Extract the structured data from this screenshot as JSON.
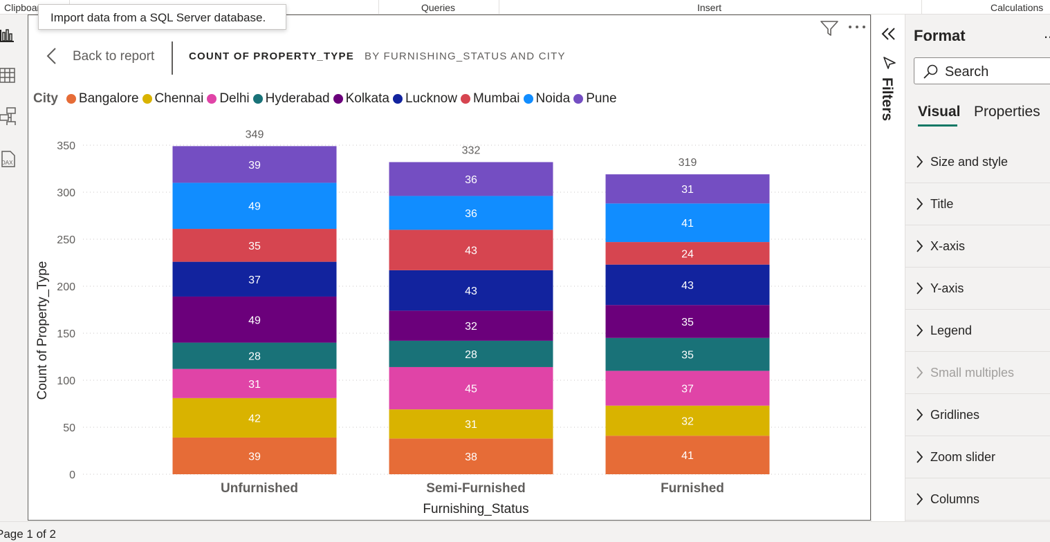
{
  "ribbon": {
    "groups": [
      "Clipboard",
      "Queries",
      "Insert",
      "Calculations"
    ]
  },
  "tooltip": {
    "text": "Import data from a SQL Server database."
  },
  "left_nav": {
    "items": [
      "report-view-icon",
      "table-view-icon",
      "model-view-icon",
      "dax-query-icon"
    ]
  },
  "visual_header": {
    "back_label": "Back to report",
    "title": "COUNT OF PROPERTY_TYPE",
    "subtitle": "BY FURNISHING_STATUS AND CITY"
  },
  "legend": {
    "title": "City",
    "items": [
      {
        "name": "Bangalore",
        "color": "#E66C37"
      },
      {
        "name": "Chennai",
        "color": "#D9B300"
      },
      {
        "name": "Delhi",
        "color": "#E044A7"
      },
      {
        "name": "Hyderabad",
        "color": "#197278"
      },
      {
        "name": "Kolkata",
        "color": "#6B007B"
      },
      {
        "name": "Lucknow",
        "color": "#12239E"
      },
      {
        "name": "Mumbai",
        "color": "#D64550"
      },
      {
        "name": "Noida",
        "color": "#118DFF"
      },
      {
        "name": "Pune",
        "color": "#744EC2"
      }
    ]
  },
  "chart_data": {
    "type": "bar",
    "stacked": true,
    "categories": [
      "Unfurnished",
      "Semi-Furnished",
      "Furnished"
    ],
    "xlabel": "Furnishing_Status",
    "ylabel": "Count of Property_Type",
    "ylim": [
      0,
      350
    ],
    "yticks": [
      0,
      50,
      100,
      150,
      200,
      250,
      300,
      350
    ],
    "grid": true,
    "totals": [
      349,
      332,
      319
    ],
    "series": [
      {
        "name": "Bangalore",
        "values": [
          39,
          38,
          41
        ]
      },
      {
        "name": "Chennai",
        "values": [
          42,
          31,
          32
        ]
      },
      {
        "name": "Delhi",
        "values": [
          31,
          45,
          37
        ]
      },
      {
        "name": "Hyderabad",
        "values": [
          28,
          28,
          35
        ]
      },
      {
        "name": "Kolkata",
        "values": [
          49,
          32,
          35
        ]
      },
      {
        "name": "Lucknow",
        "values": [
          37,
          43,
          43
        ]
      },
      {
        "name": "Mumbai",
        "values": [
          35,
          43,
          24
        ]
      },
      {
        "name": "Noida",
        "values": [
          49,
          36,
          41
        ]
      },
      {
        "name": "Pune",
        "values": [
          39,
          36,
          31
        ]
      }
    ]
  },
  "filters_pane": {
    "label": "Filters"
  },
  "format_pane": {
    "title": "Format",
    "more": "...",
    "search_placeholder": "Search",
    "tabs": [
      "Visual",
      "Properties"
    ],
    "sections": [
      {
        "label": "Size and style",
        "enabled": true
      },
      {
        "label": "Title",
        "enabled": true
      },
      {
        "label": "X-axis",
        "enabled": true
      },
      {
        "label": "Y-axis",
        "enabled": true
      },
      {
        "label": "Legend",
        "enabled": true
      },
      {
        "label": "Small multiples",
        "enabled": false
      },
      {
        "label": "Gridlines",
        "enabled": true
      },
      {
        "label": "Zoom slider",
        "enabled": true
      },
      {
        "label": "Columns",
        "enabled": true
      }
    ]
  },
  "status_bar": {
    "page_label": "Page 1 of 2"
  }
}
